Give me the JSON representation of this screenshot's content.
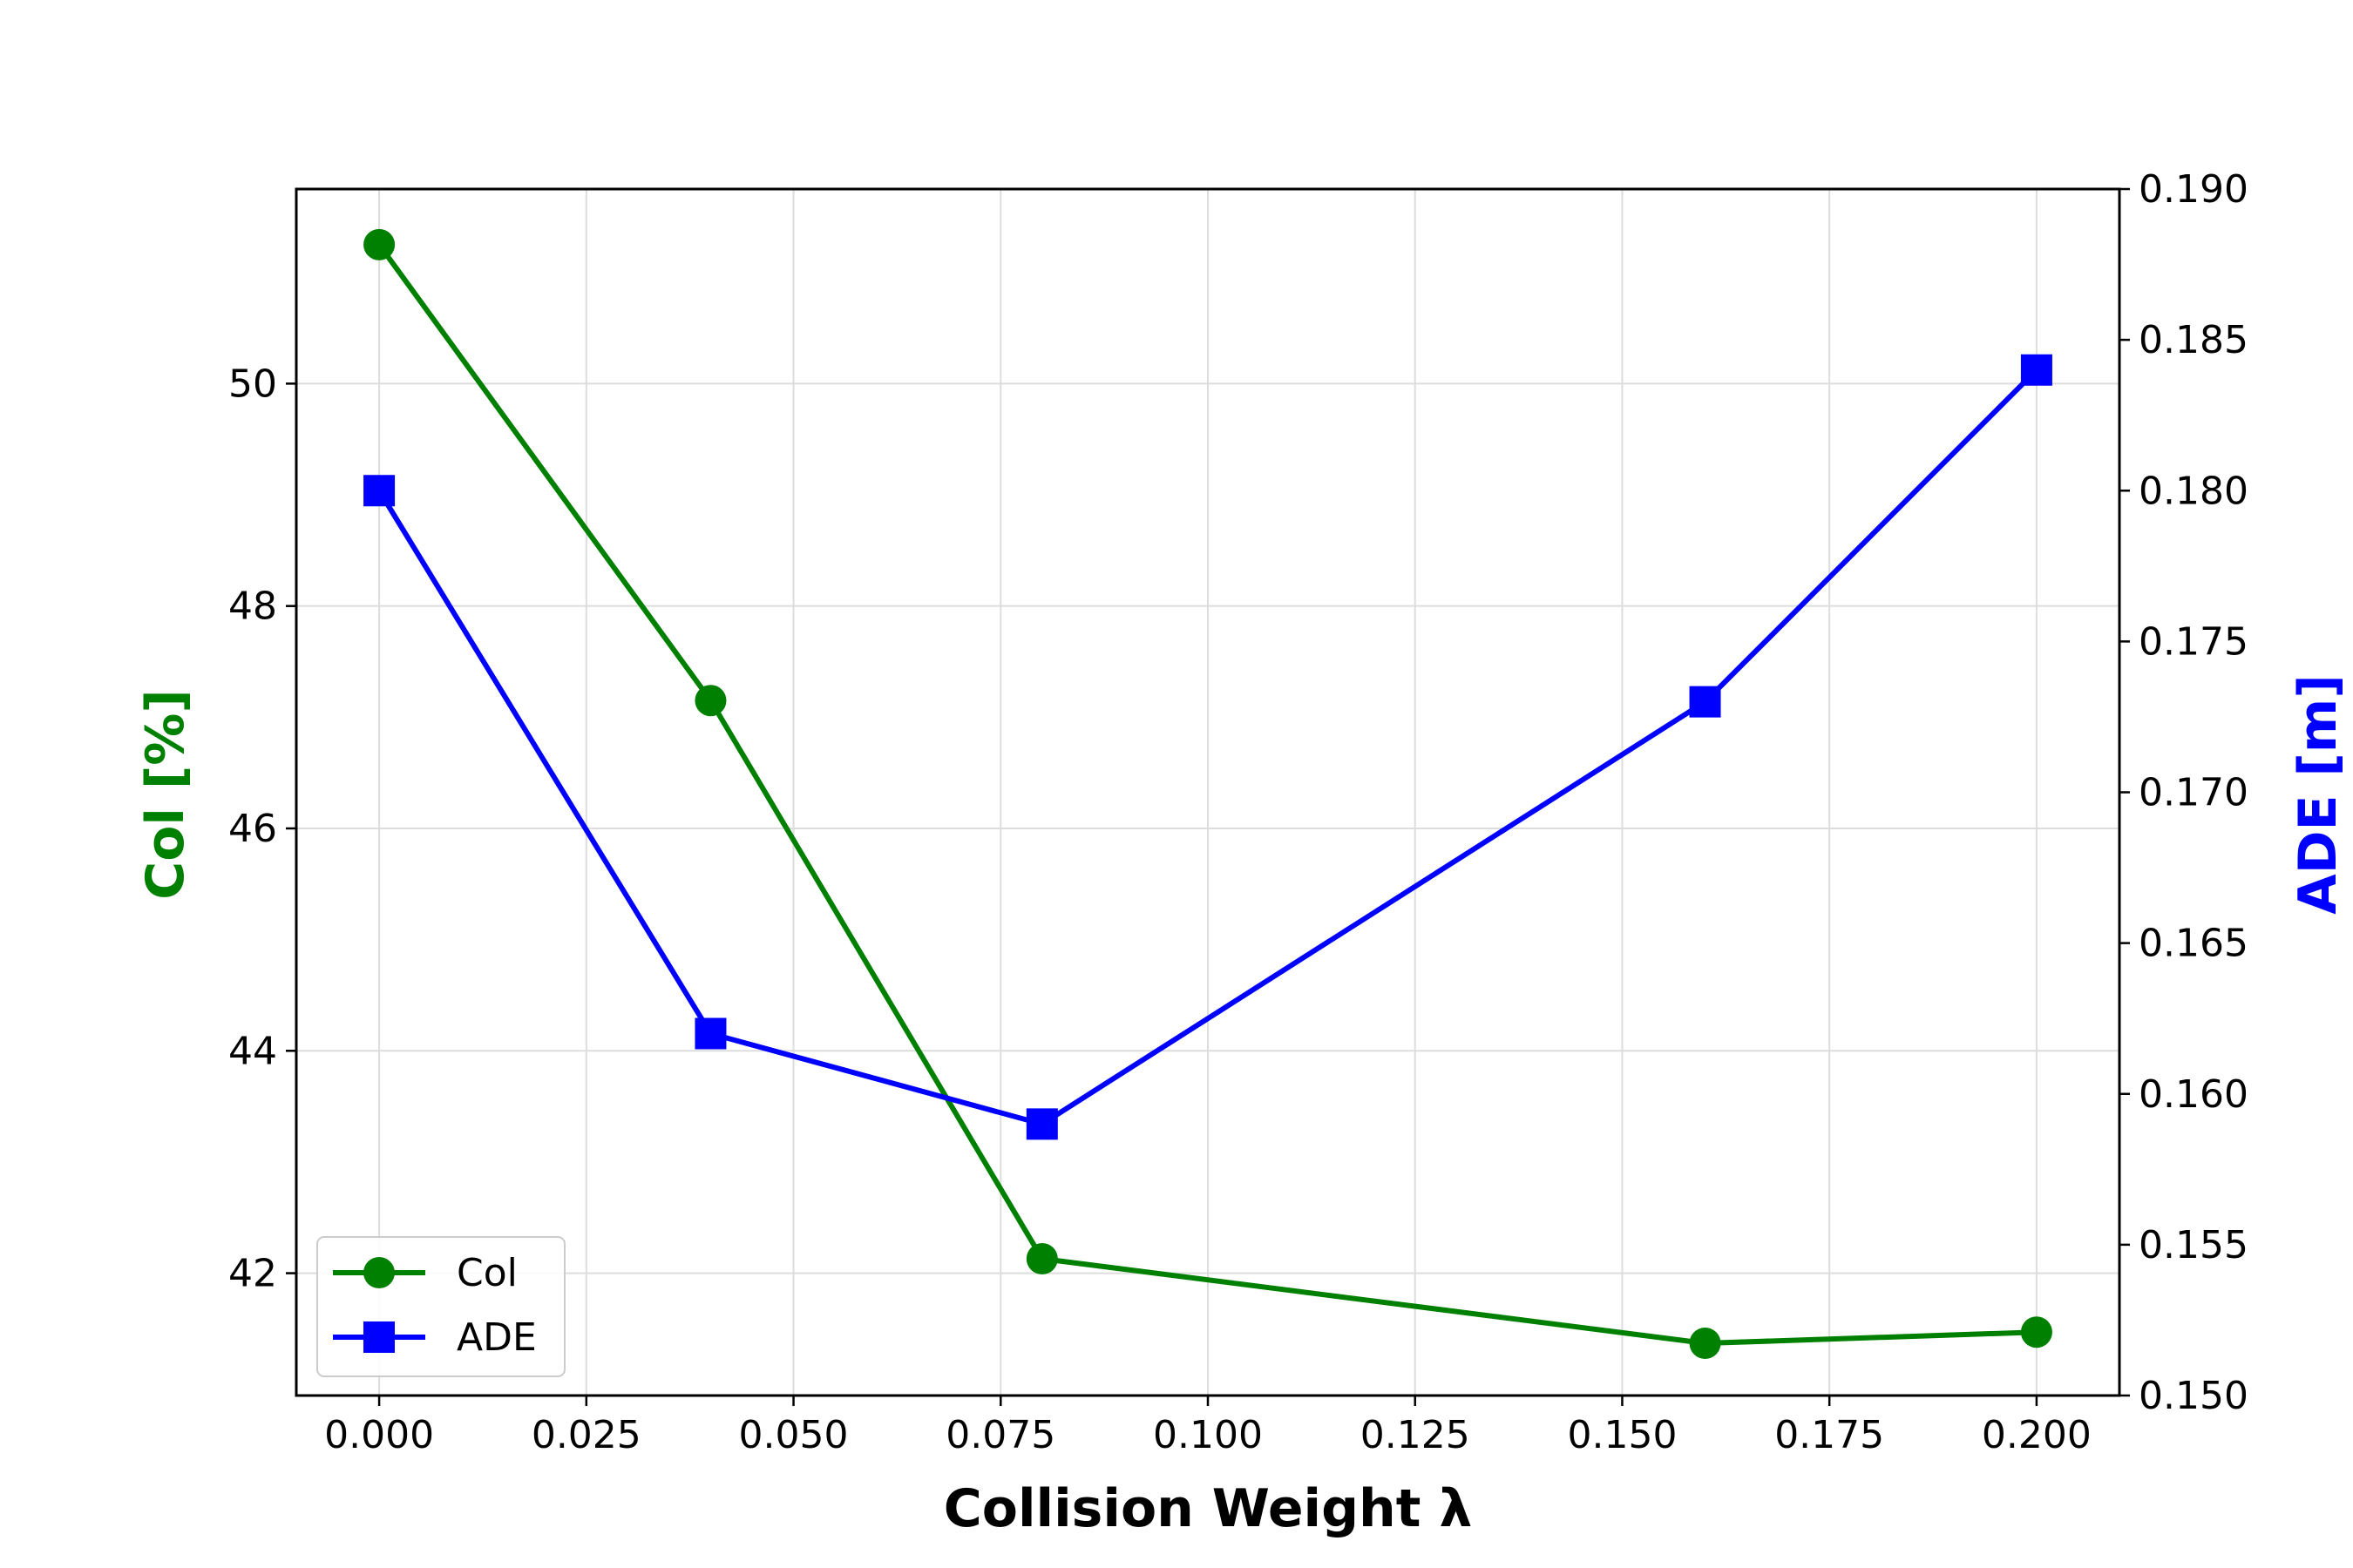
{
  "chart_data": {
    "type": "line",
    "title": "",
    "xlabel": "Collision Weight λ",
    "ylabel_left": "Col [%]",
    "ylabel_right": "ADE [m]",
    "xlim": [
      -0.01,
      0.21
    ],
    "ylim_left": [
      40.9,
      51.75
    ],
    "ylim_right": [
      0.15,
      0.19
    ],
    "xticks": [
      0.0,
      0.025,
      0.05,
      0.075,
      0.1,
      0.125,
      0.15,
      0.175,
      0.2
    ],
    "xtick_labels": [
      "0.000",
      "0.025",
      "0.050",
      "0.075",
      "0.100",
      "0.125",
      "0.150",
      "0.175",
      "0.200"
    ],
    "yticks_left": [
      42,
      44,
      46,
      48,
      50
    ],
    "ytick_labels_left": [
      "42",
      "44",
      "46",
      "48",
      "50"
    ],
    "yticks_right": [
      0.15,
      0.155,
      0.16,
      0.165,
      0.17,
      0.175,
      0.18,
      0.185,
      0.19
    ],
    "ytick_labels_right": [
      "0.150",
      "0.155",
      "0.160",
      "0.165",
      "0.170",
      "0.175",
      "0.180",
      "0.185",
      "0.190"
    ],
    "grid": true,
    "legend_position": "lower-left",
    "series": [
      {
        "name": "Col",
        "axis": "left",
        "color": "#008000",
        "marker": "circle",
        "x": [
          0.0,
          0.04,
          0.08,
          0.16,
          0.2
        ],
        "values": [
          51.25,
          47.15,
          42.13,
          41.37,
          41.47
        ]
      },
      {
        "name": "ADE",
        "axis": "right",
        "color": "#0000ff",
        "marker": "square",
        "x": [
          0.0,
          0.04,
          0.08,
          0.16,
          0.2
        ],
        "values": [
          0.18,
          0.162,
          0.159,
          0.173,
          0.184
        ]
      }
    ]
  }
}
